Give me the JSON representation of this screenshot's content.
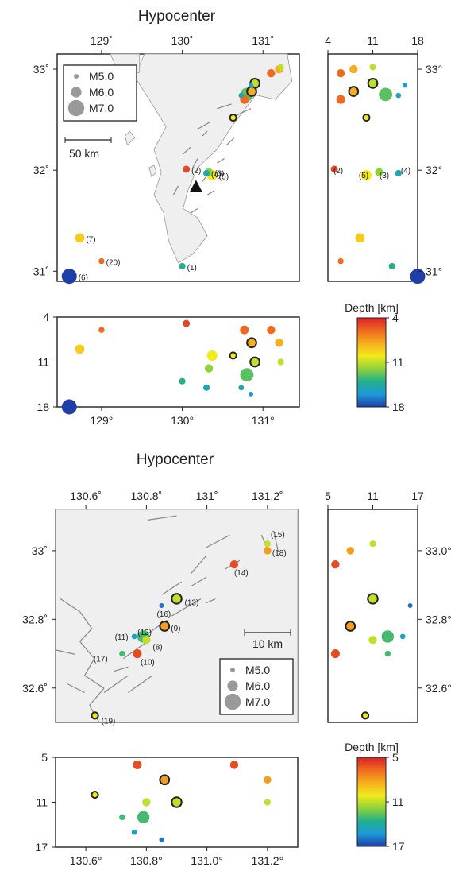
{
  "chart_data": [
    {
      "type": "scatter",
      "title": "Hypocenter",
      "panel": "map",
      "xlim": [
        128.45,
        131.45
      ],
      "ylim": [
        30.9,
        33.15
      ],
      "xticks": [
        129,
        130,
        131
      ],
      "xtick_labels": [
        "129˚",
        "130˚",
        "131˚"
      ],
      "yticks": [
        31,
        32,
        33
      ],
      "ytick_labels": [
        "31˚",
        "32˚",
        "33˚"
      ],
      "legend": {
        "placement": "top-left",
        "entries": [
          "M5.0",
          "M6.0",
          "M7.0"
        ]
      },
      "scalebar_label": "50 km",
      "points": [
        {
          "lon": 130.8,
          "lat": 32.75,
          "depth": 13,
          "mag": 6.5
        },
        {
          "lon": 130.9,
          "lat": 32.86,
          "depth": 11,
          "mag": 5.8,
          "outlined": true
        },
        {
          "lon": 130.86,
          "lat": 32.78,
          "depth": 8,
          "mag": 5.8,
          "outlined": true
        },
        {
          "lon": 130.77,
          "lat": 32.7,
          "depth": 6,
          "mag": 5.7
        },
        {
          "lon": 130.63,
          "lat": 32.52,
          "depth": 10,
          "mag": 5.3,
          "outlined": true
        },
        {
          "lon": 131.1,
          "lat": 32.96,
          "depth": 6,
          "mag": 5.6
        },
        {
          "lon": 131.2,
          "lat": 33.0,
          "depth": 8,
          "mag": 5.6
        },
        {
          "lon": 131.22,
          "lat": 33.02,
          "depth": 11,
          "mag": 5.3
        },
        {
          "lon": 130.85,
          "lat": 32.84,
          "depth": 16,
          "mag": 5.0
        },
        {
          "lon": 130.73,
          "lat": 32.74,
          "depth": 15,
          "mag": 5.1
        },
        {
          "lon": 130.05,
          "lat": 32.01,
          "depth": 5,
          "mag": 5.4,
          "label": "(2)"
        },
        {
          "lon": 130.37,
          "lat": 31.95,
          "depth": 10,
          "mag": 6.0,
          "label": "(5)"
        },
        {
          "lon": 130.33,
          "lat": 31.98,
          "depth": 12,
          "mag": 5.6,
          "label": "(3)"
        },
        {
          "lon": 130.3,
          "lat": 31.97,
          "depth": 15,
          "mag": 5.3,
          "label": "(4)"
        },
        {
          "lon": 128.73,
          "lat": 31.33,
          "depth": 9,
          "mag": 5.8,
          "label": "(7)"
        },
        {
          "lon": 129.0,
          "lat": 31.1,
          "depth": 6,
          "mag": 5.2,
          "label": "(20)"
        },
        {
          "lon": 130.0,
          "lat": 31.05,
          "depth": 14,
          "mag": 5.3,
          "label": "(1)"
        },
        {
          "lon": 128.6,
          "lat": 30.95,
          "depth": 18,
          "mag": 6.8,
          "label": "(6)"
        }
      ],
      "marker": {
        "name": "volcano",
        "lon": 130.17,
        "lat": 31.84
      }
    },
    {
      "type": "scatter",
      "panel": "latitude-depth",
      "xlabel": "",
      "xlim": [
        4,
        18
      ],
      "xticks": [
        4,
        11,
        18
      ],
      "ylim": [
        30.9,
        33.15
      ],
      "ytick_labels": [
        "31°",
        "32°",
        "33°"
      ],
      "annotations": [
        "(2)",
        "(5)",
        "(3)",
        "(4)"
      ]
    },
    {
      "type": "scatter",
      "panel": "longitude-depth",
      "xlim": [
        128.45,
        131.45
      ],
      "xtick_labels": [
        "129°",
        "130°",
        "131°"
      ],
      "ylim": [
        4,
        18
      ],
      "ytick_labels": [
        "4",
        "11",
        "18"
      ]
    },
    {
      "type": "heatmap",
      "panel": "colorbar",
      "title": "Depth [km]",
      "range": [
        4,
        18
      ],
      "tick_labels": [
        "4",
        "11",
        "18"
      ]
    },
    {
      "type": "scatter",
      "title": "Hypocenter",
      "panel": "map",
      "xlim": [
        130.5,
        131.3
      ],
      "ylim": [
        32.5,
        33.12
      ],
      "xticks": [
        130.6,
        130.8,
        131.0,
        131.2
      ],
      "xtick_labels": [
        "130.6˚",
        "130.8˚",
        "131˚",
        "131.2˚"
      ],
      "yticks": [
        32.6,
        32.8,
        33.0
      ],
      "ytick_labels": [
        "32.6˚",
        "32.8˚",
        "33˚"
      ],
      "legend": {
        "placement": "bottom-right",
        "entries": [
          "M5.0",
          "M6.0",
          "M7.0"
        ]
      },
      "scalebar_label": "10 km",
      "points": [
        {
          "lon": 131.2,
          "lat": 33.02,
          "depth": 11,
          "mag": 5.3,
          "label": "(15)"
        },
        {
          "lon": 131.2,
          "lat": 33.0,
          "depth": 8,
          "mag": 5.5,
          "label": "(18)"
        },
        {
          "lon": 131.09,
          "lat": 32.96,
          "depth": 6,
          "mag": 5.6,
          "label": "(14)"
        },
        {
          "lon": 130.85,
          "lat": 32.84,
          "depth": 16,
          "mag": 5.0,
          "label": "(16)"
        },
        {
          "lon": 130.9,
          "lat": 32.86,
          "depth": 11,
          "mag": 5.9,
          "outlined": true,
          "label": "(13)"
        },
        {
          "lon": 130.86,
          "lat": 32.78,
          "depth": 8,
          "mag": 5.8,
          "outlined": true,
          "label": "(9)"
        },
        {
          "lon": 130.79,
          "lat": 32.75,
          "depth": 13,
          "mag": 6.3,
          "label": "(11)"
        },
        {
          "lon": 130.76,
          "lat": 32.75,
          "depth": 15,
          "mag": 5.1,
          "label": "(12)"
        },
        {
          "lon": 130.8,
          "lat": 32.74,
          "depth": 11,
          "mag": 5.6,
          "label": "(8)"
        },
        {
          "lon": 130.77,
          "lat": 32.7,
          "depth": 6,
          "mag": 5.7,
          "label": "(10)"
        },
        {
          "lon": 130.72,
          "lat": 32.7,
          "depth": 13,
          "mag": 5.2,
          "label": "(17)"
        },
        {
          "lon": 130.63,
          "lat": 32.52,
          "depth": 10,
          "mag": 5.3,
          "outlined": true,
          "label": "(19)"
        }
      ]
    },
    {
      "type": "scatter",
      "panel": "latitude-depth",
      "xlim": [
        5,
        17
      ],
      "xticks": [
        5,
        11,
        17
      ],
      "ylim": [
        32.5,
        33.12
      ],
      "ytick_labels": [
        "32.6°",
        "32.8°",
        "33.0°"
      ]
    },
    {
      "type": "scatter",
      "panel": "longitude-depth",
      "xlim": [
        130.5,
        131.3
      ],
      "xtick_labels": [
        "130.6°",
        "130.8°",
        "131.0°",
        "131.2°"
      ],
      "ylim": [
        5,
        17
      ],
      "ytick_labels": [
        "5",
        "11",
        "17"
      ]
    },
    {
      "type": "heatmap",
      "panel": "colorbar",
      "title": "Depth [km]",
      "range": [
        5,
        17
      ],
      "tick_labels": [
        "5",
        "11",
        "17"
      ]
    }
  ],
  "colors": {
    "scale": [
      "#1e3ea8",
      "#1d9ad8",
      "#22b08a",
      "#8fd23a",
      "#f2ea1c",
      "#f7ae1e",
      "#ef6a1f",
      "#d8232a"
    ],
    "outline": "#222222",
    "map_fill": "#efefef",
    "fault": "#888888",
    "volcano": "#111111"
  }
}
